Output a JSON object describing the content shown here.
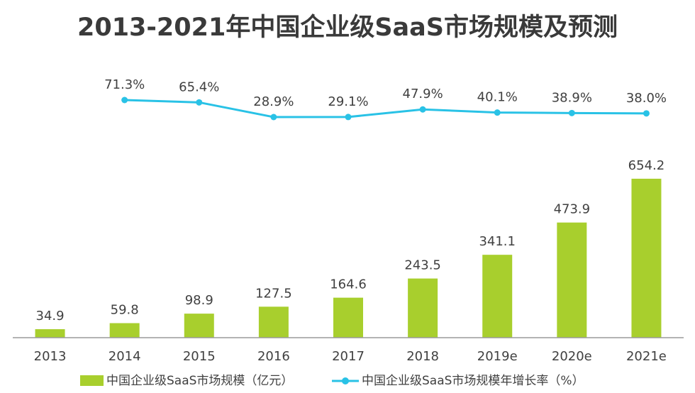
{
  "chart_data": {
    "type": "bar",
    "title": "2013-2021年中国企业级SaaS市场规模及预测",
    "categories": [
      "2013",
      "2014",
      "2015",
      "2016",
      "2017",
      "2018",
      "2019e",
      "2020e",
      "2021e"
    ],
    "series": [
      {
        "name": "中国企业级SaaS市场规模（亿元）",
        "type": "bar",
        "values": [
          34.9,
          59.8,
          98.9,
          127.5,
          164.6,
          243.5,
          341.1,
          473.9,
          654.2
        ],
        "labels": [
          "34.9",
          "59.8",
          "98.9",
          "127.5",
          "164.6",
          "243.5",
          "341.1",
          "473.9",
          "654.2"
        ]
      },
      {
        "name": "中国企业级SaaS市场规模年增长率（%）",
        "type": "line",
        "x": [
          "2014",
          "2015",
          "2016",
          "2017",
          "2018",
          "2019e",
          "2020e",
          "2021e"
        ],
        "values": [
          71.3,
          65.4,
          28.9,
          29.1,
          47.9,
          40.1,
          38.9,
          38.0
        ],
        "labels": [
          "71.3%",
          "65.4%",
          "28.9%",
          "29.1%",
          "47.9%",
          "40.1%",
          "38.9%",
          "38.0%"
        ]
      }
    ],
    "colors": {
      "bar": "#a8cf2d",
      "line": "#29c2e6",
      "text": "#404040",
      "axis": "#9a9a9a"
    },
    "legend_position": "bottom",
    "grid": false
  }
}
